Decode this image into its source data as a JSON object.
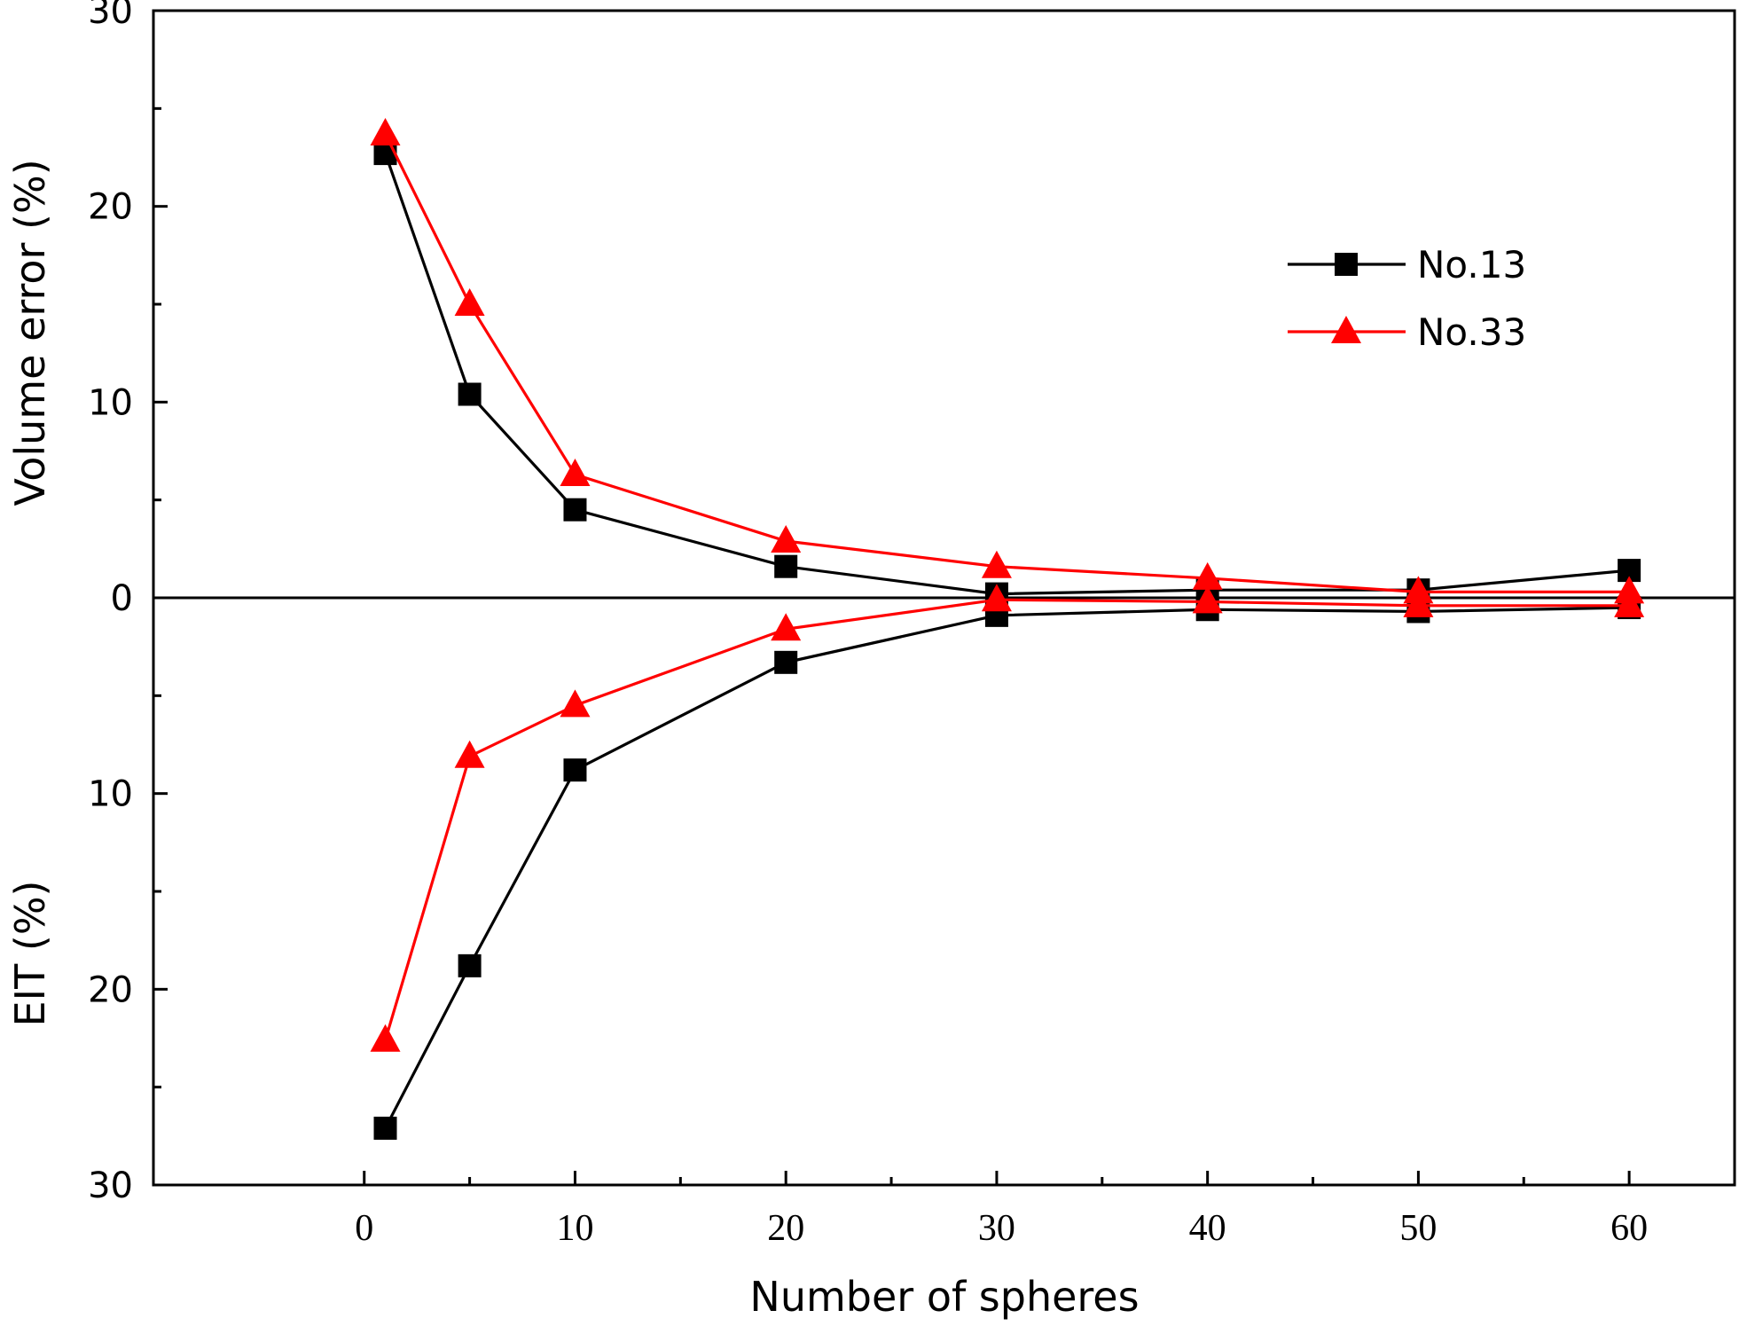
{
  "chart_data": {
    "type": "line",
    "xlabel": "Number of spheres",
    "ylabel_upper": "Volume error (%)",
    "ylabel_lower": "EIT (%)",
    "xlim": [
      -10,
      65
    ],
    "ylim": [
      -30,
      30
    ],
    "x_ticks": [
      0,
      10,
      20,
      30,
      40,
      50,
      60
    ],
    "y_ticks": [
      {
        "value": 30,
        "label": "30"
      },
      {
        "value": 20,
        "label": "20"
      },
      {
        "value": 10,
        "label": "10"
      },
      {
        "value": 0,
        "label": "0"
      },
      {
        "value": -10,
        "label": "10"
      },
      {
        "value": -20,
        "label": "20"
      },
      {
        "value": -30,
        "label": "30"
      }
    ],
    "zero_line": true,
    "legend_position": "top-right",
    "x": [
      1,
      5,
      10,
      20,
      30,
      40,
      50,
      60
    ],
    "series": [
      {
        "name": "No.13",
        "color": "#000000",
        "marker": "square",
        "volume_error": [
          22.7,
          10.4,
          4.5,
          1.6,
          0.2,
          0.4,
          0.4,
          1.4
        ],
        "eit": [
          -27.1,
          -18.8,
          -8.8,
          -3.3,
          -0.9,
          -0.6,
          -0.7,
          -0.5
        ]
      },
      {
        "name": "No.33",
        "color": "#ff0000",
        "marker": "triangle",
        "volume_error": [
          23.7,
          15.0,
          6.3,
          2.9,
          1.6,
          1.0,
          0.3,
          0.3
        ],
        "eit": [
          -22.6,
          -8.1,
          -5.5,
          -1.6,
          -0.1,
          -0.2,
          -0.4,
          -0.4
        ]
      }
    ]
  }
}
